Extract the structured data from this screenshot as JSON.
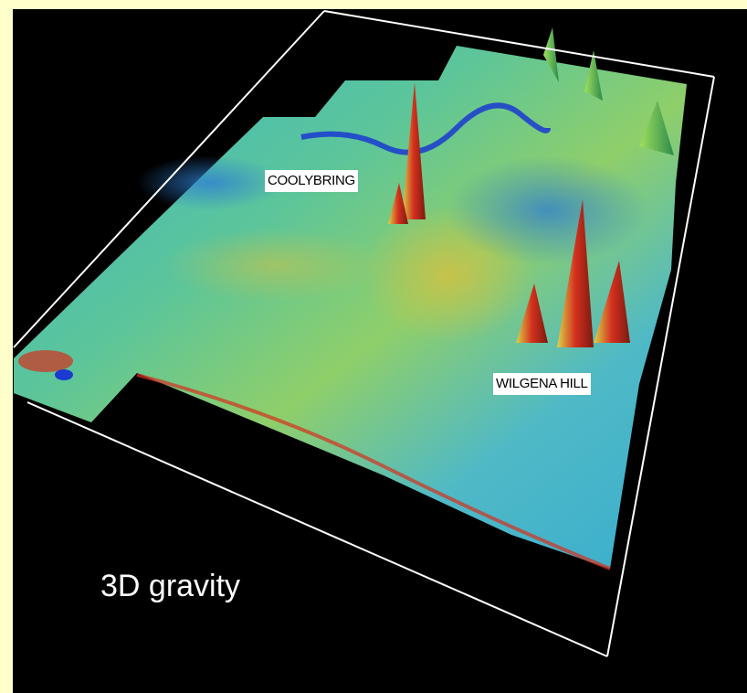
{
  "annotations": [
    {
      "text": "COOLYBRING"
    },
    {
      "text": "WILGENA HILL"
    }
  ],
  "caption": "3D gravity"
}
